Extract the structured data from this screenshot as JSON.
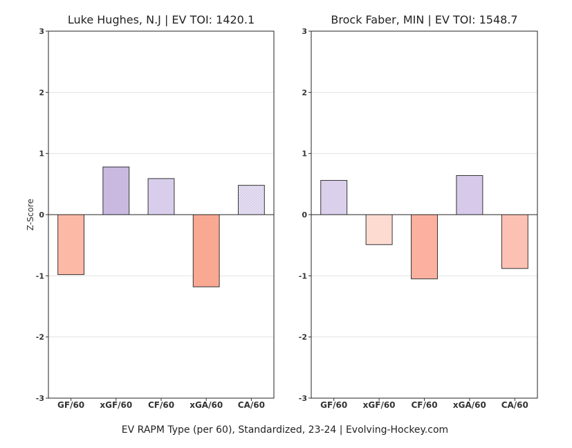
{
  "caption": "EV RAPM Type (per 60), Standardized, 23-24    |    Evolving-Hockey.com",
  "chart_data": [
    {
      "type": "bar",
      "title": "Luke Hughes, N.J  |  EV TOI: 1420.1",
      "ylabel": "Z-Score",
      "xlabel": "",
      "ylim": [
        -3,
        3
      ],
      "yticks": [
        -3,
        -2,
        -1,
        0,
        1,
        2,
        3
      ],
      "grid": true,
      "categories": [
        "GF/60",
        "xGF/60",
        "CF/60",
        "xGA/60",
        "CA/60"
      ],
      "values": [
        -0.98,
        0.78,
        0.59,
        -1.18,
        0.48
      ],
      "colors": [
        "#fcb9a6",
        "#c9b8e0",
        "#d8cdea",
        "#f9a892",
        "#e6dff2"
      ],
      "hatched": [
        false,
        false,
        false,
        false,
        true
      ]
    },
    {
      "type": "bar",
      "title": "Brock Faber, MIN  |  EV TOI: 1548.7",
      "ylabel": "",
      "xlabel": "",
      "ylim": [
        -3,
        3
      ],
      "yticks": [
        -3,
        -2,
        -1,
        0,
        1,
        2,
        3
      ],
      "grid": true,
      "categories": [
        "GF/60",
        "xGF/60",
        "CF/60",
        "xGA/60",
        "CA/60"
      ],
      "values": [
        0.56,
        -0.49,
        -1.05,
        0.64,
        -0.88
      ],
      "colors": [
        "#dbd0ec",
        "#fddbd1",
        "#fbb0a0",
        "#d6c9ea",
        "#fcc1b2"
      ],
      "hatched": [
        false,
        false,
        false,
        false,
        false
      ]
    }
  ]
}
